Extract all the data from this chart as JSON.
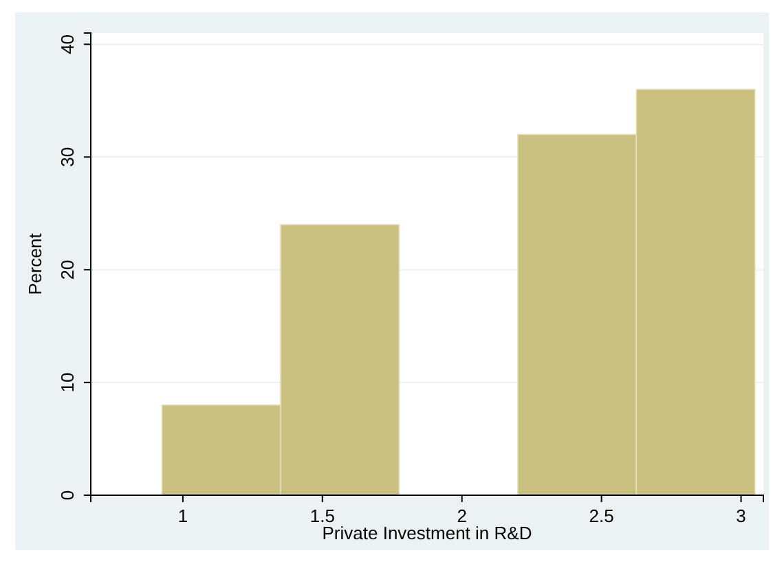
{
  "chart_data": {
    "type": "histogram",
    "xlabel": "Private Investment in R&D",
    "ylabel": "Percent",
    "bins": [
      0.925,
      1.35,
      1.775,
      2.2,
      2.625,
      3.05
    ],
    "values": [
      8,
      24,
      0,
      32,
      36
    ],
    "color": "#cac181",
    "xlim": [
      0.67,
      3.08
    ],
    "xticks": [
      1,
      1.5,
      2,
      2.5,
      3
    ],
    "ylim": [
      0,
      41
    ],
    "yticks": [
      0,
      10,
      20,
      30,
      40
    ],
    "grid": "y"
  }
}
